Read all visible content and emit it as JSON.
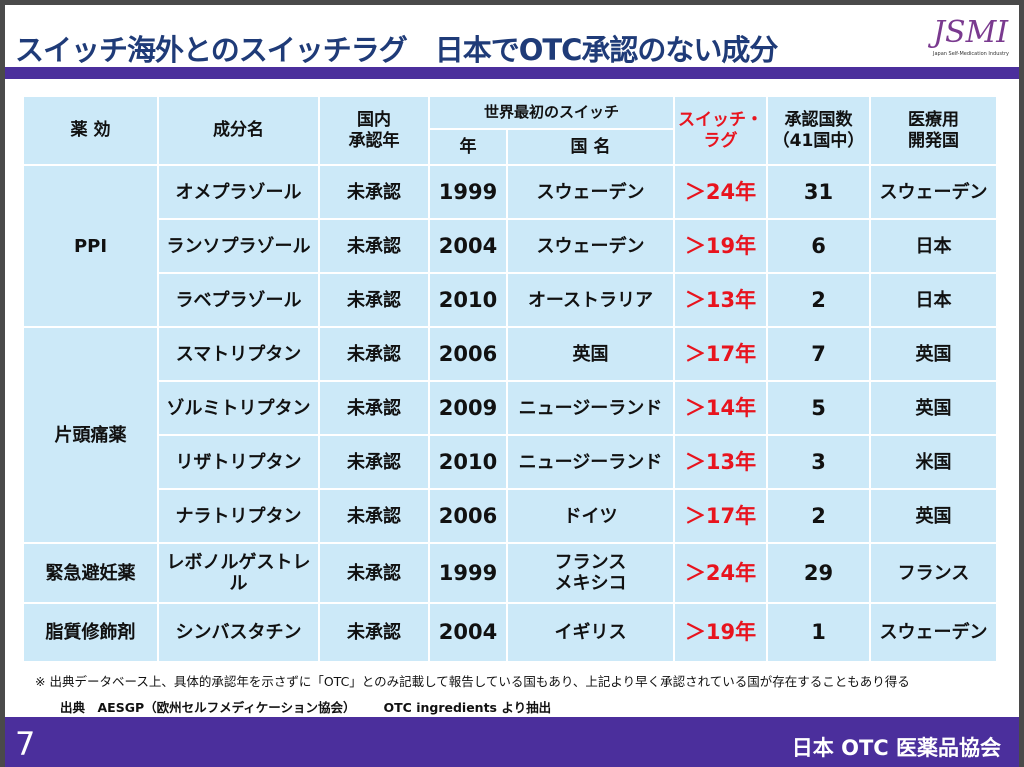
{
  "title": "スイッチ海外とのスイッチラグ　日本でOTC承認のない成分",
  "logo": {
    "mark": "JSMI",
    "sub": "Japan Self-Medication Industry"
  },
  "headers": {
    "efficacy": "薬 効",
    "ingredient": "成分名",
    "domestic": "国内\n承認年",
    "first_switch": "世界最初のスイッチ",
    "year": "年",
    "country": "国 名",
    "lag": "スイッチ・\nラグ",
    "approved": "承認国数\n（41国中）",
    "developer": "医療用\n開発国"
  },
  "groups": [
    {
      "name": "PPI",
      "rows": [
        {
          "ingredient": "オメプラゾール",
          "domestic": "未承認",
          "year": "1999",
          "country": "スウェーデン",
          "lag": "＞24年",
          "approved": "31",
          "developer": "スウェーデン"
        },
        {
          "ingredient": "ランソプラゾール",
          "domestic": "未承認",
          "year": "2004",
          "country": "スウェーデン",
          "lag": "＞19年",
          "approved": "6",
          "developer": "日本"
        },
        {
          "ingredient": "ラベプラゾール",
          "domestic": "未承認",
          "year": "2010",
          "country": "オーストラリア",
          "lag": "＞13年",
          "approved": "2",
          "developer": "日本"
        }
      ]
    },
    {
      "name": "片頭痛薬",
      "rows": [
        {
          "ingredient": "スマトリプタン",
          "domestic": "未承認",
          "year": "2006",
          "country": "英国",
          "lag": "＞17年",
          "approved": "7",
          "developer": "英国"
        },
        {
          "ingredient": "ゾルミトリプタン",
          "domestic": "未承認",
          "year": "2009",
          "country": "ニュージーランド",
          "lag": "＞14年",
          "approved": "5",
          "developer": "英国"
        },
        {
          "ingredient": "リザトリプタン",
          "domestic": "未承認",
          "year": "2010",
          "country": "ニュージーランド",
          "lag": "＞13年",
          "approved": "3",
          "developer": "米国"
        },
        {
          "ingredient": "ナラトリプタン",
          "domestic": "未承認",
          "year": "2006",
          "country": "ドイツ",
          "lag": "＞17年",
          "approved": "2",
          "developer": "英国"
        }
      ]
    },
    {
      "name": "緊急避妊薬",
      "rows": [
        {
          "ingredient": "レボノルゲストレル",
          "domestic": "未承認",
          "year": "1999",
          "country": "フランス\nメキシコ",
          "lag": "＞24年",
          "approved": "29",
          "developer": "フランス"
        }
      ]
    },
    {
      "name": "脂質修飾剤",
      "rows": [
        {
          "ingredient": "シンバスタチン",
          "domestic": "未承認",
          "year": "2004",
          "country": "イギリス",
          "lag": "＞19年",
          "approved": "1",
          "developer": "スウェーデン"
        }
      ]
    }
  ],
  "note": "※ 出典データベース上、具体的承認年を示さずに「OTC」とのみ記載して報告している国もあり、上記より早く承認されている国が存在することもあり得る",
  "source": {
    "label": "出典　AESGP（欧州セルフメディケーション協会）",
    "extract": "OTC ingredients より抽出"
  },
  "footer": {
    "page": "7",
    "org": "日本 OTC 医薬品協会"
  }
}
